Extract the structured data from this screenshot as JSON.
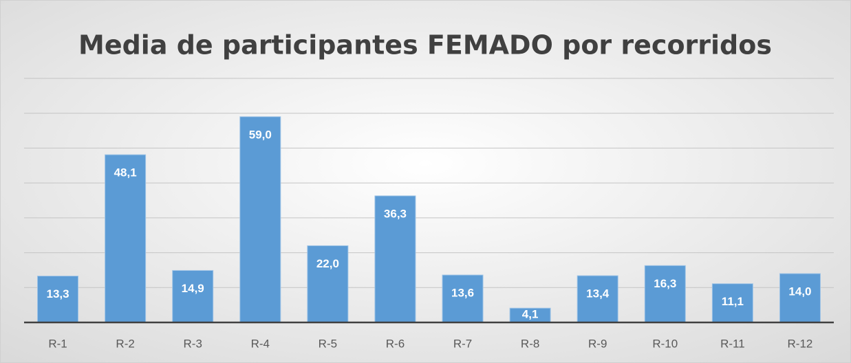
{
  "chart_data": {
    "type": "bar",
    "title": "Media de participantes FEMADO por recorridos",
    "categories": [
      "R-1",
      "R-2",
      "R-3",
      "R-4",
      "R-5",
      "R-6",
      "R-7",
      "R-8",
      "R-9",
      "R-10",
      "R-11",
      "R-12"
    ],
    "values": [
      13.3,
      48.1,
      14.9,
      59.0,
      22.0,
      36.3,
      13.6,
      4.1,
      13.4,
      16.3,
      11.1,
      14.0
    ],
    "value_labels": [
      "13,3",
      "48,1",
      "14,9",
      "59,0",
      "22,0",
      "36,3",
      "13,6",
      "4,1",
      "13,4",
      "16,3",
      "11,1",
      "14,0"
    ],
    "color": "#5b9bd5",
    "ylim": [
      0,
      70
    ],
    "yticks": [
      0,
      10,
      20,
      30,
      40,
      50,
      60,
      70
    ],
    "grid": true
  }
}
